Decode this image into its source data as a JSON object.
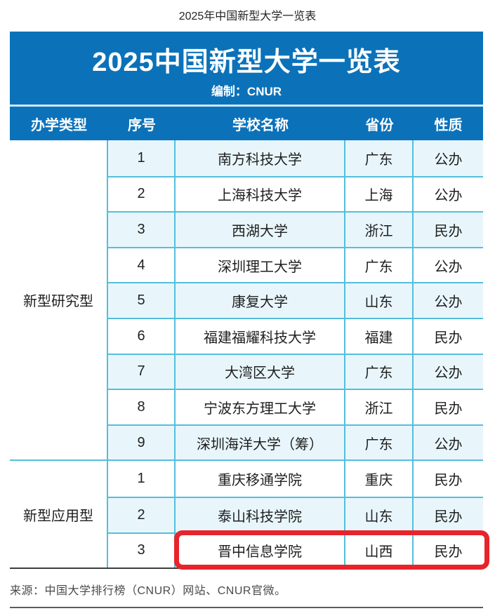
{
  "page_title": "2025年中国新型大学一览表",
  "banner": {
    "title": "2025中国新型大学一览表",
    "subtitle": "编制：CNUR"
  },
  "columns": {
    "type": "办学类型",
    "seq": "序号",
    "name": "学校名称",
    "province": "省份",
    "nature": "性质"
  },
  "sections": [
    {
      "type_label": "新型研究型",
      "rows": [
        {
          "seq": "1",
          "name": "南方科技大学",
          "province": "广东",
          "nature": "公办"
        },
        {
          "seq": "2",
          "name": "上海科技大学",
          "province": "上海",
          "nature": "公办"
        },
        {
          "seq": "3",
          "name": "西湖大学",
          "province": "浙江",
          "nature": "民办"
        },
        {
          "seq": "4",
          "name": "深圳理工大学",
          "province": "广东",
          "nature": "公办"
        },
        {
          "seq": "5",
          "name": "康复大学",
          "province": "山东",
          "nature": "公办"
        },
        {
          "seq": "6",
          "name": "福建福耀科技大学",
          "province": "福建",
          "nature": "民办"
        },
        {
          "seq": "7",
          "name": "大湾区大学",
          "province": "广东",
          "nature": "公办"
        },
        {
          "seq": "8",
          "name": "宁波东方理工大学",
          "province": "浙江",
          "nature": "民办"
        },
        {
          "seq": "9",
          "name": "深圳海洋大学（筹）",
          "province": "广东",
          "nature": "公办"
        }
      ]
    },
    {
      "type_label": "新型应用型",
      "rows": [
        {
          "seq": "1",
          "name": "重庆移通学院",
          "province": "重庆",
          "nature": "民办"
        },
        {
          "seq": "2",
          "name": "泰山科技学院",
          "province": "山东",
          "nature": "民办"
        },
        {
          "seq": "3",
          "name": "晋中信息学院",
          "province": "山西",
          "nature": "民办"
        }
      ]
    }
  ],
  "highlight": {
    "target_row": "晋中信息学院",
    "color": "#e8242b"
  },
  "footer": {
    "source": "来源：中国大学排行榜（CNUR）网站、CNUR官微。"
  },
  "colors": {
    "primary_blue": "#0b72ba",
    "row_alt_bg": "#e8f6fc",
    "cell_border": "#54bedd"
  }
}
